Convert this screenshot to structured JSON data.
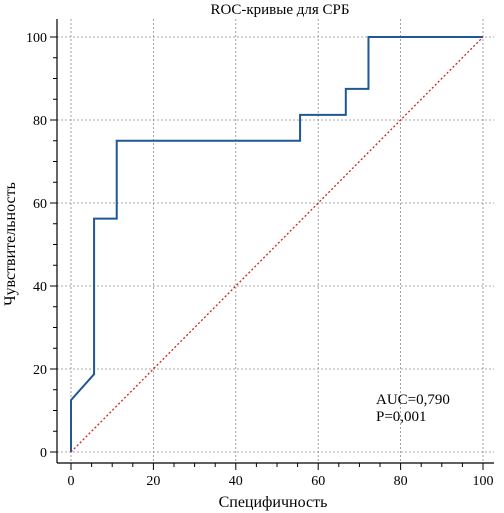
{
  "chart_data": {
    "type": "line",
    "title": "ROC-кривые для СРБ",
    "xlabel": "Специфичность",
    "ylabel": "Чувствительность",
    "xlim": [
      0,
      100
    ],
    "ylim": [
      0,
      100
    ],
    "x_ticks": [
      "0",
      "20",
      "40",
      "60",
      "80",
      "100"
    ],
    "y_ticks": [
      "0",
      "20",
      "40",
      "60",
      "80",
      "100"
    ],
    "grid": true,
    "series": [
      {
        "color": "#1f5797",
        "style": "solid step",
        "x": [
          0,
          0,
          5.6,
          5.6,
          11.1,
          11.1,
          55.6,
          55.6,
          66.7,
          66.7,
          72.2,
          72.2,
          100
        ],
        "y": [
          0,
          12.5,
          18.75,
          56.25,
          56.25,
          75,
          75,
          81.25,
          81.25,
          87.5,
          87.5,
          100,
          100
        ]
      },
      {
        "color": "#d42020",
        "style": "dotted reference diagonal",
        "x": [
          0,
          100
        ],
        "y": [
          0,
          100
        ]
      }
    ],
    "annotations": [
      "AUC=0,790",
      "P=0,001"
    ]
  }
}
